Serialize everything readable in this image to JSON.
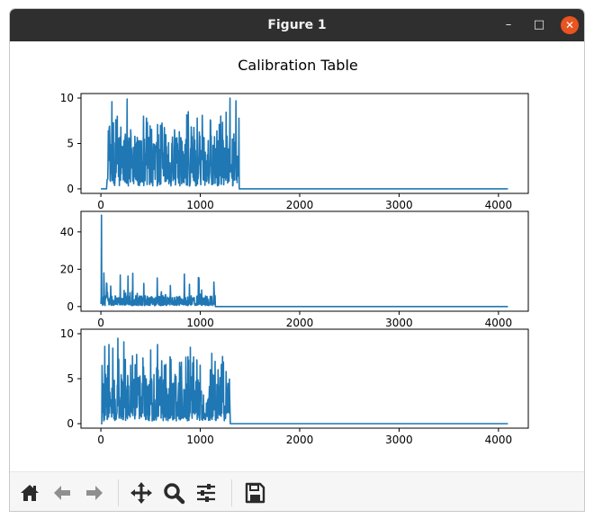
{
  "window": {
    "title": "Figure 1",
    "buttons": {
      "minimize": "–",
      "maximize": "□",
      "close": "✕"
    },
    "close_color": "#e95420"
  },
  "toolbar": {
    "icons": [
      "home-icon",
      "back-icon",
      "forward-icon",
      "pan-icon",
      "zoom-icon",
      "configure-subplots-icon",
      "save-icon"
    ]
  },
  "figure": {
    "title": "Calibration Table"
  },
  "chart_data": [
    {
      "type": "line",
      "color": "#1f77b4",
      "xlim": [
        -200,
        4300
      ],
      "ylim": [
        -0.5,
        10.5
      ],
      "xticks": [
        0,
        1000,
        2000,
        3000,
        4000
      ],
      "yticks": [
        0,
        5,
        10
      ],
      "x_range": [
        0,
        4095
      ],
      "active_range": [
        60,
        1390
      ],
      "baseline": 0,
      "noise_floor": 0.3,
      "peak_max": 10,
      "typical_level": [
        0.5,
        6
      ],
      "spikes": [
        {
          "x": 75,
          "y": 6.4
        },
        {
          "x": 110,
          "y": 9.6
        },
        {
          "x": 165,
          "y": 8.0
        },
        {
          "x": 200,
          "y": 6.8
        },
        {
          "x": 265,
          "y": 9.9
        },
        {
          "x": 300,
          "y": 6.5
        },
        {
          "x": 430,
          "y": 8.0
        },
        {
          "x": 460,
          "y": 7.8
        },
        {
          "x": 500,
          "y": 6.5
        },
        {
          "x": 600,
          "y": 7.0
        },
        {
          "x": 650,
          "y": 5.6
        },
        {
          "x": 740,
          "y": 6.5
        },
        {
          "x": 790,
          "y": 6.3
        },
        {
          "x": 880,
          "y": 8.5
        },
        {
          "x": 970,
          "y": 7.8
        },
        {
          "x": 1020,
          "y": 8.1
        },
        {
          "x": 1100,
          "y": 7.6
        },
        {
          "x": 1190,
          "y": 7.1
        },
        {
          "x": 1300,
          "y": 10.0
        },
        {
          "x": 1360,
          "y": 9.7
        }
      ],
      "seed": 11
    },
    {
      "type": "line",
      "color": "#1f77b4",
      "xlim": [
        -200,
        4300
      ],
      "ylim": [
        -2.5,
        51.0
      ],
      "xticks": [
        0,
        1000,
        2000,
        3000,
        4000
      ],
      "yticks": [
        0,
        20,
        40
      ],
      "x_range": [
        0,
        4095
      ],
      "active_range": [
        0,
        1150
      ],
      "baseline": 0,
      "noise_floor": 0.5,
      "peak_max": 49,
      "typical_level": [
        0.5,
        6
      ],
      "spikes": [
        {
          "x": 5,
          "y": 49
        },
        {
          "x": 30,
          "y": 18
        },
        {
          "x": 60,
          "y": 12
        },
        {
          "x": 100,
          "y": 11
        },
        {
          "x": 1140,
          "y": 8.5
        }
      ],
      "seed": 29
    },
    {
      "type": "line",
      "color": "#1f77b4",
      "xlim": [
        -200,
        4300
      ],
      "ylim": [
        -0.5,
        10.5
      ],
      "xticks": [
        0,
        1000,
        2000,
        3000,
        4000
      ],
      "yticks": [
        0,
        5,
        10
      ],
      "x_range": [
        0,
        4095
      ],
      "active_range": [
        10,
        1300
      ],
      "baseline": 0,
      "noise_floor": 0.3,
      "peak_max": 9.5,
      "typical_level": [
        0.5,
        5.5
      ],
      "spikes": [
        {
          "x": 40,
          "y": 8.6
        },
        {
          "x": 80,
          "y": 8.8
        },
        {
          "x": 120,
          "y": 8.4
        },
        {
          "x": 170,
          "y": 9.5
        },
        {
          "x": 230,
          "y": 9.1
        },
        {
          "x": 300,
          "y": 6.5
        },
        {
          "x": 430,
          "y": 6.3
        },
        {
          "x": 500,
          "y": 8.2
        },
        {
          "x": 570,
          "y": 8.8
        },
        {
          "x": 640,
          "y": 6.5
        },
        {
          "x": 700,
          "y": 7.0
        },
        {
          "x": 800,
          "y": 6.3
        },
        {
          "x": 900,
          "y": 8.5
        },
        {
          "x": 1000,
          "y": 6.5
        },
        {
          "x": 1100,
          "y": 6.0
        },
        {
          "x": 1180,
          "y": 6.0
        },
        {
          "x": 1260,
          "y": 5.8
        }
      ],
      "seed": 47
    }
  ]
}
